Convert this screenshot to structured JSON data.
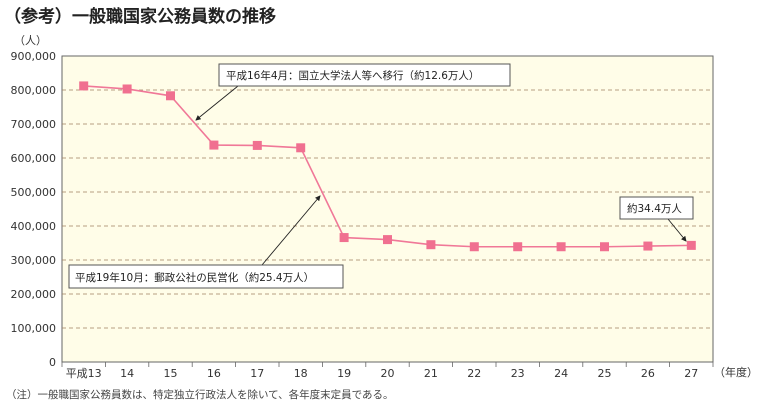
{
  "title": "（参考）一般職国家公務員数の推移",
  "note": "（注）一般職国家公務員数は、特定独立行政法人を除いて、各年度末定員である。",
  "chart_data": {
    "type": "line",
    "ylabel": "（人）",
    "xlabel": "（年度）",
    "categories": [
      "平成13",
      "14",
      "15",
      "16",
      "17",
      "18",
      "19",
      "20",
      "21",
      "22",
      "23",
      "24",
      "25",
      "26",
      "27"
    ],
    "values": [
      812000,
      803000,
      783000,
      638000,
      637000,
      630000,
      366000,
      360000,
      345000,
      339000,
      339000,
      339000,
      339000,
      341000,
      343000
    ],
    "ylim": [
      0,
      900000
    ],
    "yticks": [
      0,
      100000,
      200000,
      300000,
      400000,
      500000,
      600000,
      700000,
      800000,
      900000
    ],
    "ytick_labels": [
      "0",
      "100,000",
      "200,000",
      "300,000",
      "400,000",
      "500,000",
      "600,000",
      "700,000",
      "800,000",
      "900,000"
    ],
    "grid": "horizontal dashed",
    "colors": {
      "line": "#f07898",
      "marker": "#f07090",
      "plot_bg": "#fffde8",
      "grid": "#a08060"
    },
    "annotations": [
      {
        "text": "平成16年4月：国立大学法人等へ移行（約12.6万人）"
      },
      {
        "text": "平成19年10月：郵政公社の民営化（約25.4万人）"
      },
      {
        "text": "約34.4万人"
      }
    ]
  }
}
